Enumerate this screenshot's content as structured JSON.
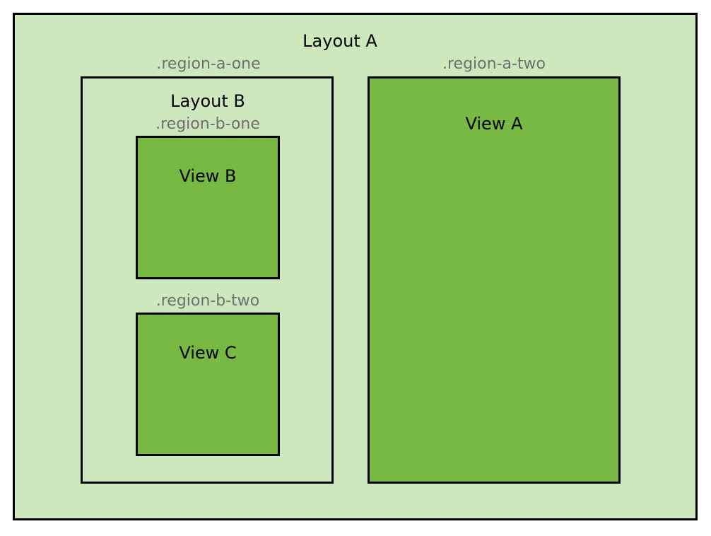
{
  "layout_a": {
    "title": "Layout A",
    "region_one_label": ".region-a-one",
    "region_two_label": ".region-a-two"
  },
  "layout_b": {
    "title": "Layout B",
    "region_one_label": ".region-b-one",
    "region_two_label": ".region-b-two"
  },
  "views": {
    "view_a": "View A",
    "view_b": "View B",
    "view_c": "View C"
  },
  "colors": {
    "layout_fill": "#cde8bc",
    "view_fill": "#78b943",
    "region_label": "#6f6f6f",
    "border": "#000000"
  }
}
